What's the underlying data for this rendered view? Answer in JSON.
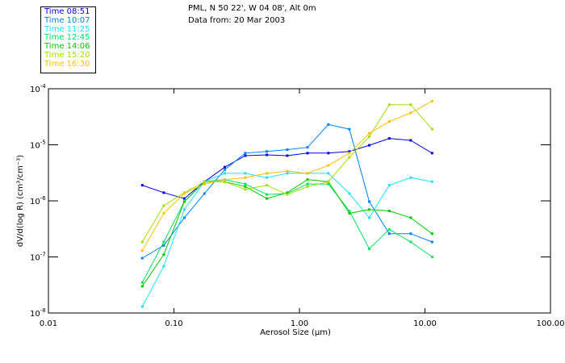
{
  "title": {
    "line1": "PML, N 50 22', W 04 08', Alt 0m",
    "line2": "Data from: 20 Mar 2003"
  },
  "chart_data": {
    "type": "line",
    "title": "PML, N 50 22', W 04 08', Alt 0m",
    "subtitle": "Data from: 20 Mar 2003",
    "xlabel": "Aerosol Size (μm)",
    "ylabel": "dV/d(log R) (cm³/cm⁻³)",
    "xscale": "log",
    "yscale": "log",
    "xlim": [
      0.01,
      100
    ],
    "ylim": [
      1e-08,
      0.0001
    ],
    "xticks": [
      "0.01",
      "0.10",
      "1.00",
      "10.00",
      "100.00"
    ],
    "xtick_values": [
      0.01,
      0.1,
      1,
      10,
      100
    ],
    "yticks": [
      {
        "base": "10",
        "exp": "-4",
        "value": 0.0001
      },
      {
        "base": "10",
        "exp": "-5",
        "value": 1e-05
      },
      {
        "base": "10",
        "exp": "-6",
        "value": 1e-06
      },
      {
        "base": "10",
        "exp": "-7",
        "value": 1e-07
      },
      {
        "base": "10",
        "exp": "-8",
        "value": 1e-08
      }
    ],
    "grid": false,
    "legend_position": "top-left outside",
    "x": [
      0.056,
      0.083,
      0.121,
      0.175,
      0.254,
      0.37,
      0.55,
      0.8,
      1.16,
      1.7,
      2.5,
      3.6,
      5.2,
      7.7,
      11.4
    ],
    "series": [
      {
        "name": "Time 08:51",
        "color": "#0000e0",
        "values": [
          1.9e-06,
          1.4e-06,
          1.1e-06,
          2.2e-06,
          4e-06,
          6.4e-06,
          6.6e-06,
          6.4e-06,
          7.1e-06,
          7.1e-06,
          7.6e-06,
          9.8e-06,
          1.3e-05,
          1.2e-05,
          7.1e-06
        ]
      },
      {
        "name": "Time 10:07",
        "color": "#0080ff",
        "values": [
          9.5e-08,
          1.6e-07,
          5e-07,
          1.35e-06,
          3.6e-06,
          7.1e-06,
          7.6e-06,
          8.2e-06,
          9e-06,
          2.3e-05,
          1.9e-05,
          9.7e-07,
          2.6e-07,
          2.6e-07,
          1.85e-07
        ]
      },
      {
        "name": "Time 11:25",
        "color": "#20e0ff",
        "values": [
          1.3e-08,
          6.8e-08,
          7e-07,
          2.2e-06,
          3.1e-06,
          3.1e-06,
          2.6e-06,
          3.1e-06,
          3.1e-06,
          3.1e-06,
          1.35e-06,
          5e-07,
          1.9e-06,
          2.6e-06,
          2.2e-06
        ]
      },
      {
        "name": "Time 12:45",
        "color": "#00e060",
        "values": [
          3.5e-08,
          1.85e-07,
          9.7e-07,
          2.2e-06,
          2.4e-06,
          2e-06,
          1.3e-06,
          1.35e-06,
          2e-06,
          2e-06,
          6.6e-07,
          1.4e-07,
          3.1e-07,
          1.85e-07,
          1e-07
        ]
      },
      {
        "name": "Time 14:06",
        "color": "#00c800",
        "values": [
          3e-08,
          1.1e-07,
          9.7e-07,
          2.2e-06,
          2.2e-06,
          1.8e-06,
          1.1e-06,
          1.4e-06,
          2.4e-06,
          2.2e-06,
          6e-07,
          7e-07,
          6.6e-07,
          5e-07,
          2.6e-07
        ]
      },
      {
        "name": "Time 15:20",
        "color": "#a0e000",
        "values": [
          1.85e-07,
          8.2e-07,
          1.4e-06,
          2.2e-06,
          2.2e-06,
          1.6e-06,
          1.9e-06,
          1.3e-06,
          1.8e-06,
          2.2e-06,
          6e-06,
          1.4e-05,
          5.2e-05,
          5.2e-05,
          1.9e-05
        ]
      },
      {
        "name": "Time 16:30",
        "color": "#ffc000",
        "values": [
          1.3e-07,
          6e-07,
          1.35e-06,
          2e-06,
          2.4e-06,
          2.6e-06,
          3.1e-06,
          3.4e-06,
          3.1e-06,
          4.3e-06,
          7.1e-06,
          1.6e-05,
          2.6e-05,
          3.7e-05,
          6e-05
        ]
      }
    ]
  }
}
